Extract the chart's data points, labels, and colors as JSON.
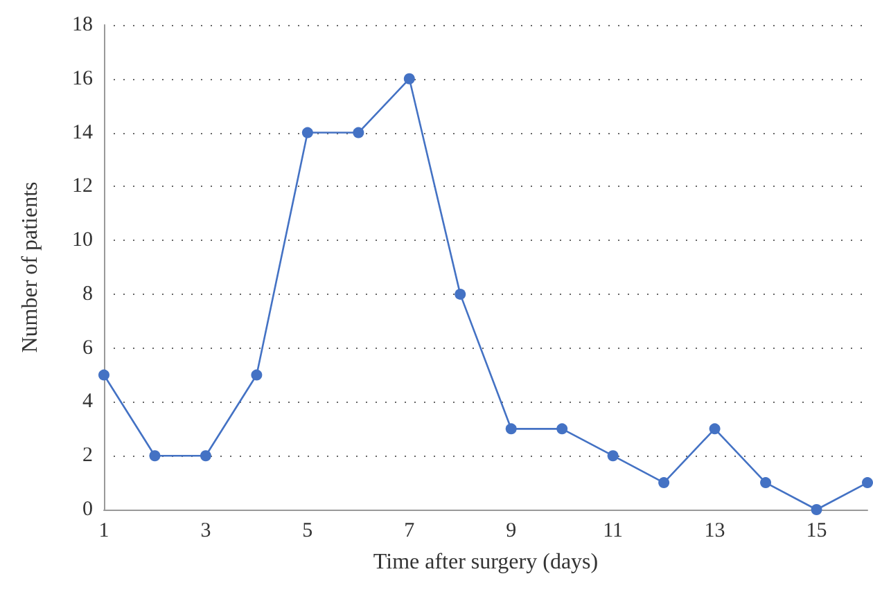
{
  "chart_data": {
    "type": "line",
    "xlabel": "Time after surgery (days)",
    "ylabel": "Number of patients",
    "x": [
      1,
      2,
      3,
      4,
      5,
      6,
      7,
      8,
      9,
      10,
      11,
      12,
      13,
      14,
      15,
      16
    ],
    "series": [
      {
        "color": "#4472c4",
        "values": [
          5,
          2,
          2,
          5,
          14,
          14,
          16,
          8,
          3,
          3,
          2,
          1,
          3,
          1,
          0,
          1
        ]
      }
    ],
    "xlim": [
      1,
      16
    ],
    "xticks": [
      1,
      3,
      5,
      7,
      9,
      11,
      13,
      15
    ],
    "ylim": [
      0,
      18
    ],
    "yticks": [
      0,
      2,
      4,
      6,
      8,
      10,
      12,
      14,
      16,
      18
    ],
    "grid": "y",
    "marker": "circle",
    "line_style": "solid"
  }
}
